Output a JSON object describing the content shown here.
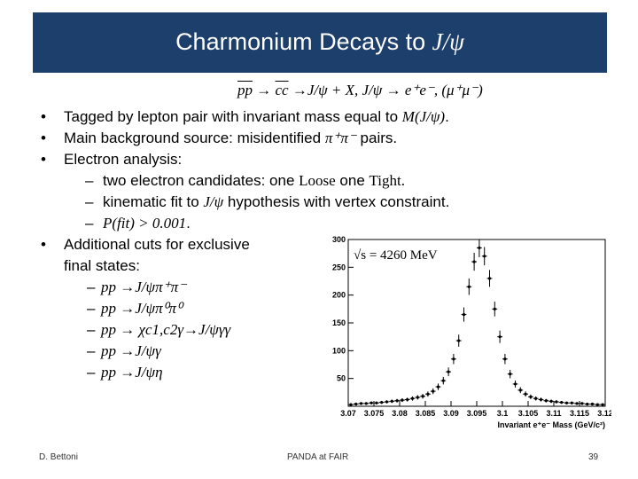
{
  "header": {
    "title_text": "Charmonium Decays to ",
    "title_math": "J/ψ"
  },
  "reaction": {
    "p1": "pp",
    "arrow1": " → ",
    "p2": "cc",
    "rest": " →J/ψ + X, J/ψ → e⁺e⁻, (μ⁺μ⁻)"
  },
  "bullets": [
    {
      "pre": "Tagged by lepton pair with invariant mass equal to ",
      "math": "M(J/ψ)",
      "post": "."
    },
    {
      "pre": "Main background source: misidentified ",
      "math": "π⁺π⁻",
      "post": " pairs."
    },
    {
      "pre": "Electron analysis:",
      "math": "",
      "post": ""
    },
    {
      "pre": "Additional cuts for exclusive",
      "math": "",
      "post": ""
    },
    {
      "pre": "final states:",
      "math": "",
      "post": ""
    }
  ],
  "electron_sub": [
    {
      "pre": "two electron candidates: one ",
      "s1": "Loose",
      "mid": " one ",
      "s2": "Tight",
      "post": "."
    },
    {
      "pre": "kinematic fit to ",
      "math": "J/ψ",
      "post": " hypothesis with vertex constraint."
    },
    {
      "math": "P(fit) > 0.001",
      "post": "."
    }
  ],
  "final_states": [
    "pp →J/ψπ⁺π⁻",
    "pp →J/ψπ⁰π⁰",
    "pp → χc1,c2γ→J/ψγγ",
    "pp →J/ψγ",
    "pp →J/ψη"
  ],
  "dash": "–",
  "bullet_char": "•",
  "footer": {
    "author": "D. Bettoni",
    "center": "PANDA at FAIR",
    "page": "39"
  },
  "chart_data": {
    "type": "histogram",
    "annotation": "√s = 4260 MeV",
    "xlabel": "Invariant e⁺e⁻ Mass (GeV/c²)",
    "ylabel": "",
    "xlim": [
      3.07,
      3.12
    ],
    "ylim": [
      0,
      300
    ],
    "x_ticks": [
      "3.07",
      "3.075",
      "3.08",
      "3.085",
      "3.09",
      "3.095",
      "3.1",
      "3.105",
      "3.11",
      "3.115",
      "3.12"
    ],
    "y_ticks": [
      "50",
      "100",
      "150",
      "200",
      "250",
      "300"
    ],
    "x": [
      3.0705,
      3.0715,
      3.0725,
      3.0735,
      3.0745,
      3.0755,
      3.0765,
      3.0775,
      3.0785,
      3.0795,
      3.0805,
      3.0815,
      3.0825,
      3.0835,
      3.0845,
      3.0855,
      3.0865,
      3.0875,
      3.0885,
      3.0895,
      3.0905,
      3.0915,
      3.0925,
      3.0935,
      3.0945,
      3.0955,
      3.0965,
      3.0975,
      3.0985,
      3.0995,
      3.1005,
      3.1015,
      3.1025,
      3.1035,
      3.1045,
      3.1055,
      3.1065,
      3.1075,
      3.1085,
      3.1095,
      3.1105,
      3.1115,
      3.1125,
      3.1135,
      3.1145,
      3.1155,
      3.1165,
      3.1175,
      3.1185,
      3.1195
    ],
    "values": [
      3,
      4,
      5,
      5,
      6,
      6,
      7,
      8,
      9,
      10,
      11,
      12,
      14,
      16,
      18,
      22,
      27,
      35,
      46,
      62,
      85,
      118,
      165,
      215,
      260,
      285,
      270,
      230,
      175,
      125,
      85,
      58,
      40,
      29,
      22,
      17,
      14,
      12,
      10,
      9,
      8,
      7,
      6,
      6,
      5,
      5,
      4,
      4,
      3,
      3
    ]
  }
}
